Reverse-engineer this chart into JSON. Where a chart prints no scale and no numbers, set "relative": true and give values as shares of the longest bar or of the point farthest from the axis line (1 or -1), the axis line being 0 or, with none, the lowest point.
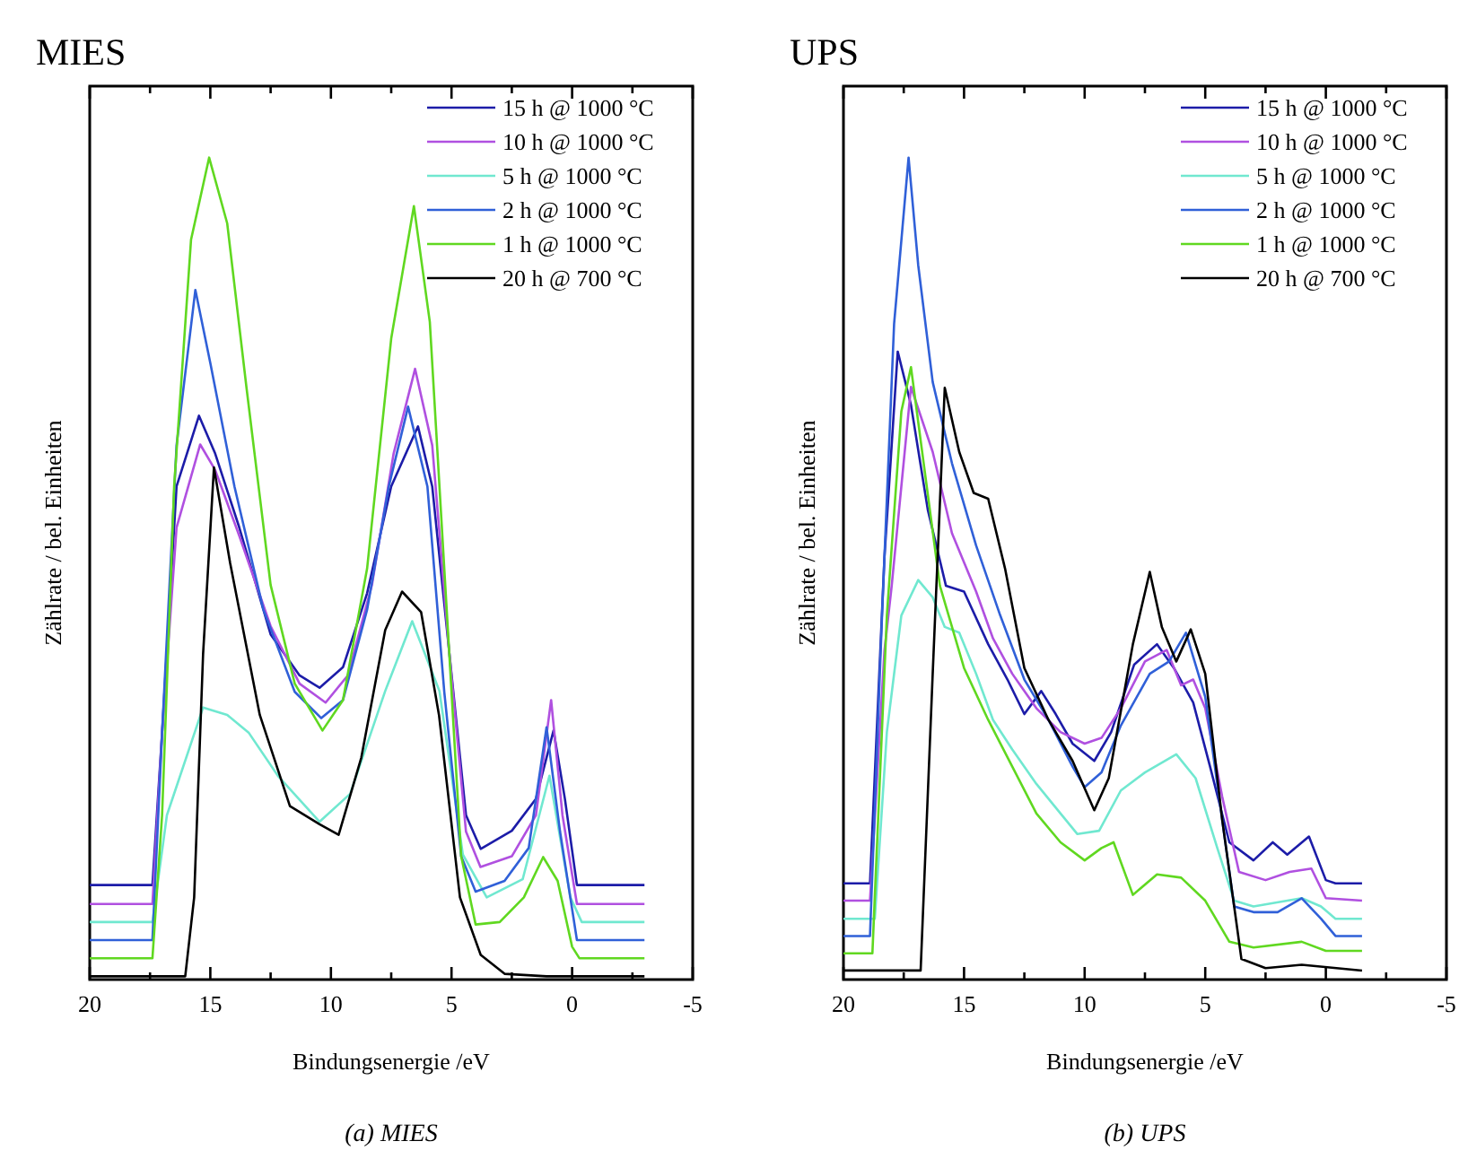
{
  "chart_data": [
    {
      "type": "line",
      "title": "MIES",
      "xlabel": "Bindungsenergie /eV",
      "ylabel": "Zählrate / bel. Einheiten",
      "relative": true,
      "legend": "top right",
      "xlim": [
        20,
        -5
      ],
      "xticks": [
        20,
        {
          "value": 17.5,
          "label": null
        },
        15,
        {
          "value": 12.5,
          "label": null
        },
        10,
        {
          "value": 7.5,
          "label": null
        },
        5,
        {
          "value": 2.5,
          "label": null
        },
        0,
        {
          "value": -2.5,
          "label": null
        },
        -5
      ],
      "annotations": [
        "(a) MIES"
      ],
      "series": [
        {
          "name": "15 h @ 1000 °C",
          "color": "#1c1ca8",
          "x": [
            20,
            17.4,
            17.0,
            16.4,
            15.47,
            14.8,
            13.8,
            12.5,
            11.3,
            10.47,
            9.5,
            8.5,
            7.5,
            6.39,
            5.8,
            5.1,
            4.4,
            3.79,
            2.5,
            1.5,
            0.77,
            0.3,
            -0.2,
            -3
          ],
          "values": [
            0.115,
            0.115,
            0.3,
            0.6,
            0.686,
            0.64,
            0.55,
            0.42,
            0.37,
            0.355,
            0.38,
            0.47,
            0.6,
            0.673,
            0.6,
            0.4,
            0.2,
            0.159,
            0.181,
            0.22,
            0.303,
            0.22,
            0.115,
            0.115
          ]
        },
        {
          "name": "10 h @ 1000 °C",
          "color": "#b050e0",
          "x": [
            20,
            17.4,
            17.0,
            16.4,
            15.42,
            14.8,
            13.8,
            12.5,
            11.3,
            10.22,
            9.3,
            8.3,
            7.4,
            6.51,
            5.8,
            5.1,
            4.4,
            3.8,
            2.5,
            1.5,
            0.87,
            0.4,
            -0.2,
            -3
          ],
          "values": [
            0.092,
            0.092,
            0.3,
            0.55,
            0.651,
            0.62,
            0.54,
            0.43,
            0.36,
            0.337,
            0.37,
            0.48,
            0.64,
            0.743,
            0.65,
            0.4,
            0.18,
            0.137,
            0.15,
            0.2,
            0.34,
            0.2,
            0.092,
            0.092
          ]
        },
        {
          "name": "5 h @ 1000 °C",
          "color": "#70e8d0",
          "x": [
            20,
            17.4,
            16.8,
            15.3,
            14.3,
            13.4,
            12.2,
            10.47,
            9.2,
            7.75,
            6.63,
            5.5,
            4.53,
            3.54,
            2.05,
            0.94,
            0.07,
            -0.4,
            -3
          ],
          "values": [
            0.07,
            0.07,
            0.2,
            0.331,
            0.322,
            0.3,
            0.248,
            0.192,
            0.226,
            0.351,
            0.436,
            0.351,
            0.152,
            0.1,
            0.122,
            0.248,
            0.1,
            0.07,
            0.07
          ]
        },
        {
          "name": "2 h @ 1000 °C",
          "color": "#3060d8",
          "x": [
            20,
            17.4,
            17.0,
            16.4,
            15.62,
            15.0,
            14.0,
            12.8,
            11.5,
            10.4,
            9.5,
            8.5,
            7.6,
            6.8,
            6.0,
            5.3,
            4.6,
            4.0,
            2.8,
            1.8,
            1.06,
            0.5,
            -0.2,
            -3
          ],
          "values": [
            0.048,
            0.048,
            0.3,
            0.65,
            0.839,
            0.75,
            0.6,
            0.45,
            0.35,
            0.318,
            0.34,
            0.45,
            0.6,
            0.697,
            0.6,
            0.35,
            0.15,
            0.107,
            0.12,
            0.16,
            0.307,
            0.18,
            0.048,
            0.048
          ]
        },
        {
          "name": "1 h @ 1000 °C",
          "color": "#60d820",
          "x": [
            20,
            17.4,
            17.0,
            16.5,
            15.8,
            15.05,
            14.3,
            13.5,
            12.5,
            11.5,
            10.35,
            9.5,
            8.5,
            7.5,
            6.56,
            5.9,
            5.2,
            4.6,
            4.0,
            3.0,
            2.0,
            1.2,
            0.6,
            0.0,
            -0.3,
            -3
          ],
          "values": [
            0.026,
            0.026,
            0.2,
            0.6,
            0.9,
            1.0,
            0.92,
            0.72,
            0.48,
            0.36,
            0.303,
            0.34,
            0.5,
            0.78,
            0.941,
            0.8,
            0.45,
            0.15,
            0.067,
            0.07,
            0.1,
            0.149,
            0.12,
            0.04,
            0.026,
            0.026
          ]
        },
        {
          "name": "20 h @ 700 °C",
          "color": "#000000",
          "x": [
            20,
            16.04,
            15.67,
            15.3,
            14.85,
            14.18,
            12.95,
            11.7,
            10.47,
            9.68,
            8.74,
            7.75,
            7.05,
            6.26,
            5.52,
            4.65,
            3.79,
            2.8,
            1.06,
            -3
          ],
          "values": [
            0.004,
            0.004,
            0.1,
            0.396,
            0.623,
            0.507,
            0.322,
            0.211,
            0.189,
            0.176,
            0.27,
            0.425,
            0.472,
            0.447,
            0.322,
            0.1,
            0.03,
            0.007,
            0.004,
            0.004
          ]
        }
      ]
    },
    {
      "type": "line",
      "title": "UPS",
      "xlabel": "Bindungsenergie /eV",
      "ylabel": "Zählrate / bel. Einheiten",
      "relative": true,
      "legend": "top right",
      "xlim": [
        20,
        -5
      ],
      "xticks": [
        20,
        {
          "value": 17.5,
          "label": null
        },
        15,
        {
          "value": 12.5,
          "label": null
        },
        10,
        {
          "value": 7.5,
          "label": null
        },
        5,
        {
          "value": 2.5,
          "label": null
        },
        0,
        {
          "value": -2.5,
          "label": null
        },
        -5
      ],
      "annotations": [
        "(b) UPS"
      ],
      "series": [
        {
          "name": "15 h @ 1000 °C",
          "color": "#1c1ca8",
          "x": [
            20,
            18.9,
            18.3,
            17.75,
            17.2,
            16.5,
            15.75,
            15.0,
            14.0,
            13.2,
            12.5,
            11.8,
            11.2,
            10.5,
            9.6,
            8.9,
            7.95,
            7.0,
            6.3,
            5.5,
            4.8,
            4.0,
            3.0,
            2.2,
            1.6,
            0.7,
            0.0,
            -0.4,
            -1.5
          ],
          "values": [
            0.117,
            0.117,
            0.514,
            0.764,
            0.699,
            0.571,
            0.479,
            0.472,
            0.408,
            0.365,
            0.323,
            0.351,
            0.323,
            0.287,
            0.266,
            0.301,
            0.383,
            0.408,
            0.379,
            0.337,
            0.259,
            0.167,
            0.145,
            0.167,
            0.152,
            0.174,
            0.121,
            0.117,
            0.117
          ]
        },
        {
          "name": "10 h @ 1000 °C",
          "color": "#b050e0",
          "x": [
            20,
            18.9,
            18.3,
            18.0,
            17.2,
            16.3,
            15.5,
            14.5,
            13.8,
            13.0,
            12.0,
            11.0,
            10.0,
            9.3,
            8.5,
            7.5,
            6.6,
            6.0,
            5.5,
            5.0,
            4.3,
            3.6,
            2.5,
            1.5,
            0.6,
            0.0,
            -1.5
          ],
          "values": [
            0.096,
            0.096,
            0.4,
            0.479,
            0.721,
            0.642,
            0.543,
            0.472,
            0.415,
            0.372,
            0.33,
            0.301,
            0.287,
            0.294,
            0.33,
            0.387,
            0.401,
            0.358,
            0.365,
            0.33,
            0.223,
            0.131,
            0.121,
            0.131,
            0.135,
            0.099,
            0.096
          ]
        },
        {
          "name": "5 h @ 1000 °C",
          "color": "#70e8d0",
          "x": [
            20,
            18.7,
            18.2,
            17.6,
            16.9,
            16.3,
            15.8,
            15.2,
            14.5,
            13.8,
            13.0,
            12.0,
            11.0,
            10.3,
            9.4,
            8.5,
            7.5,
            6.2,
            5.4,
            4.5,
            3.8,
            3.0,
            1.0,
            0.2,
            -0.4,
            -1.5
          ],
          "values": [
            0.074,
            0.074,
            0.301,
            0.443,
            0.486,
            0.465,
            0.429,
            0.422,
            0.372,
            0.316,
            0.28,
            0.238,
            0.202,
            0.177,
            0.181,
            0.23,
            0.252,
            0.274,
            0.245,
            0.16,
            0.096,
            0.089,
            0.099,
            0.089,
            0.074,
            0.074
          ]
        },
        {
          "name": "2 h @ 1000 °C",
          "color": "#3060d8",
          "x": [
            20,
            18.9,
            18.4,
            17.9,
            17.3,
            16.9,
            16.3,
            15.5,
            14.5,
            13.5,
            12.5,
            11.5,
            10.5,
            10.0,
            9.3,
            8.5,
            7.3,
            6.5,
            5.8,
            5.0,
            4.3,
            3.8,
            3.0,
            2.0,
            1.0,
            0.2,
            -0.4,
            -1.5
          ],
          "values": [
            0.053,
            0.053,
            0.443,
            0.798,
            1.0,
            0.869,
            0.727,
            0.628,
            0.528,
            0.443,
            0.365,
            0.316,
            0.259,
            0.234,
            0.252,
            0.309,
            0.372,
            0.387,
            0.422,
            0.344,
            0.195,
            0.089,
            0.082,
            0.082,
            0.099,
            0.074,
            0.053,
            0.053
          ]
        },
        {
          "name": "1 h @ 1000 °C",
          "color": "#60d820",
          "x": [
            20,
            18.8,
            18.2,
            17.6,
            17.2,
            16.8,
            16.0,
            15.0,
            14.0,
            13.0,
            12.0,
            11.0,
            10.0,
            9.3,
            8.8,
            8.0,
            7.0,
            6.0,
            5.0,
            4.0,
            3.0,
            1.0,
            0.0,
            -1.5
          ],
          "values": [
            0.032,
            0.032,
            0.443,
            0.691,
            0.745,
            0.656,
            0.479,
            0.379,
            0.316,
            0.259,
            0.202,
            0.167,
            0.145,
            0.16,
            0.167,
            0.103,
            0.128,
            0.124,
            0.096,
            0.046,
            0.039,
            0.046,
            0.035,
            0.035
          ]
        },
        {
          "name": "20 h @ 700 °C",
          "color": "#000000",
          "x": [
            20,
            16.8,
            16.3,
            15.8,
            15.2,
            14.6,
            14.0,
            13.3,
            12.5,
            11.5,
            10.5,
            9.6,
            9.0,
            8.0,
            7.3,
            6.8,
            6.2,
            5.6,
            5.0,
            4.3,
            3.5,
            2.5,
            1.0,
            -1.5
          ],
          "values": [
            0.011,
            0.011,
            0.372,
            0.72,
            0.642,
            0.592,
            0.585,
            0.5,
            0.379,
            0.316,
            0.266,
            0.206,
            0.245,
            0.408,
            0.496,
            0.429,
            0.387,
            0.426,
            0.372,
            0.195,
            0.025,
            0.014,
            0.018,
            0.011
          ]
        }
      ]
    }
  ]
}
